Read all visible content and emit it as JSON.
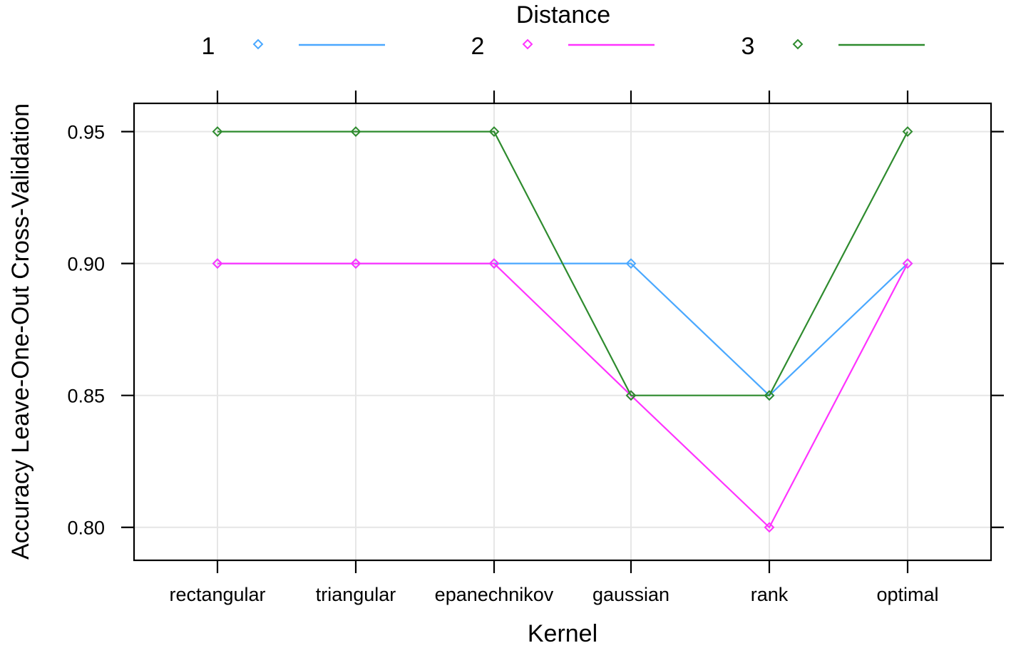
{
  "chart_data": {
    "type": "line",
    "xlabel": "Kernel",
    "ylabel": "Accuracy Leave-One-Out Cross-Validation",
    "categories": [
      "rectangular",
      "triangular",
      "epanechnikov",
      "gaussian",
      "rank",
      "optimal"
    ],
    "ylim": [
      0.7875,
      0.9607
    ],
    "yticks": [
      0.8,
      0.85,
      0.9,
      0.95
    ],
    "ytick_labels": [
      "0.80",
      "0.85",
      "0.90",
      "0.95"
    ],
    "grid": true,
    "legend": {
      "title": "Distance",
      "position": "top"
    },
    "series": [
      {
        "name": "1",
        "color": "#4aa8ff",
        "values": [
          0.9,
          0.9,
          0.9,
          0.9,
          0.85,
          0.9
        ]
      },
      {
        "name": "2",
        "color": "#ff33ff",
        "values": [
          0.9,
          0.9,
          0.9,
          0.85,
          0.8,
          0.9
        ]
      },
      {
        "name": "3",
        "color": "#2e8b2e",
        "values": [
          0.95,
          0.95,
          0.95,
          0.85,
          0.85,
          0.95
        ]
      }
    ]
  }
}
